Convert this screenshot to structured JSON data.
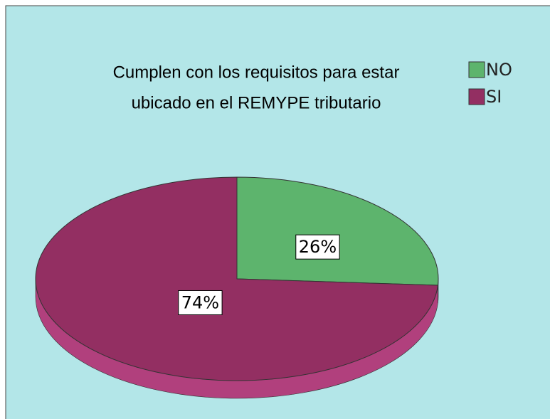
{
  "chart_data": {
    "type": "pie",
    "title": [
      "Cumplen con los requisitos para estar",
      "ubicado en el REMYPE tributario"
    ],
    "categories": [
      "NO",
      "SI"
    ],
    "values": [
      26,
      74
    ],
    "value_labels": [
      "26%",
      "74%"
    ],
    "colors": [
      "#5db46d",
      "#932f62"
    ],
    "side_colors": [
      "#3f8a4e",
      "#b1407d"
    ]
  }
}
